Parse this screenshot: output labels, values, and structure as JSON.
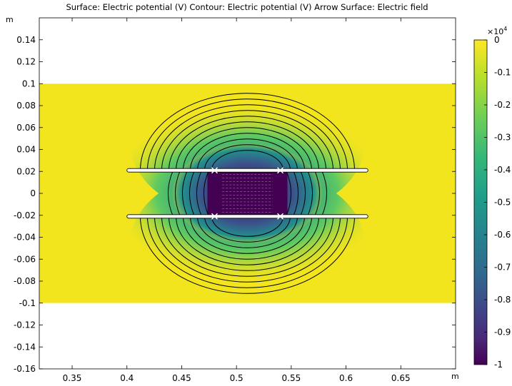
{
  "chart_data": {
    "type": "heatmap",
    "title": "Surface: Electric potential (V)  Contour: Electric potential (V)  Arrow Surface: Electric field",
    "x_unit": "m",
    "y_unit": "m",
    "xlim": [
      0.32,
      0.7
    ],
    "ylim": [
      -0.16,
      0.16
    ],
    "x_ticks": [
      "0.35",
      "0.4",
      "0.45",
      "0.5",
      "0.55",
      "0.6",
      "0.65"
    ],
    "x_tick_values": [
      0.35,
      0.4,
      0.45,
      0.5,
      0.55,
      0.6,
      0.65
    ],
    "y_ticks": [
      "0.14",
      "0.12",
      "0.1",
      "0.08",
      "0.06",
      "0.04",
      "0.02",
      "0",
      "-0.02",
      "-0.04",
      "-0.06",
      "-0.08",
      "-0.1",
      "-0.12",
      "-0.14",
      "-0.16"
    ],
    "y_tick_values": [
      0.14,
      0.12,
      0.1,
      0.08,
      0.06,
      0.04,
      0.02,
      0,
      -0.02,
      -0.04,
      -0.06,
      -0.08,
      -0.1,
      -0.12,
      -0.14,
      -0.16
    ],
    "domain": {
      "x": [
        0.32,
        0.7
      ],
      "y": [
        -0.1,
        0.1
      ]
    },
    "plates": [
      {
        "x": [
          0.4,
          0.62
        ],
        "y": 0.021
      },
      {
        "x": [
          0.4,
          0.62
        ],
        "y": -0.021
      }
    ],
    "electrodes": [
      {
        "x": [
          0.48,
          0.54
        ],
        "y": 0.021
      },
      {
        "x": [
          0.48,
          0.54
        ],
        "y": -0.021
      }
    ],
    "field_region": {
      "x": [
        0.48,
        0.54
      ],
      "y": [
        -0.021,
        0.021
      ],
      "value": -10000
    },
    "colorbar": {
      "multiplier": "×10",
      "exponent": "4",
      "ticks": [
        "0",
        "-0.1",
        "-0.2",
        "-0.3",
        "-0.4",
        "-0.5",
        "-0.6",
        "-0.7",
        "-0.8",
        "-0.9",
        "-1"
      ],
      "tick_values": [
        0,
        -0.1,
        -0.2,
        -0.3,
        -0.4,
        -0.5,
        -0.6,
        -0.7,
        -0.8,
        -0.9,
        -1
      ],
      "range": [
        -1,
        0
      ],
      "colormap": [
        "#fde725",
        "#b5de2b",
        "#6ece58",
        "#35b779",
        "#1f9e89",
        "#26828e",
        "#31688e",
        "#3e4989",
        "#482878",
        "#440154"
      ]
    },
    "colors": {
      "background_field": "#f2e51d",
      "contour": "#000000",
      "arrow": "#ffffff",
      "plate_fill": "#ffffff"
    }
  }
}
